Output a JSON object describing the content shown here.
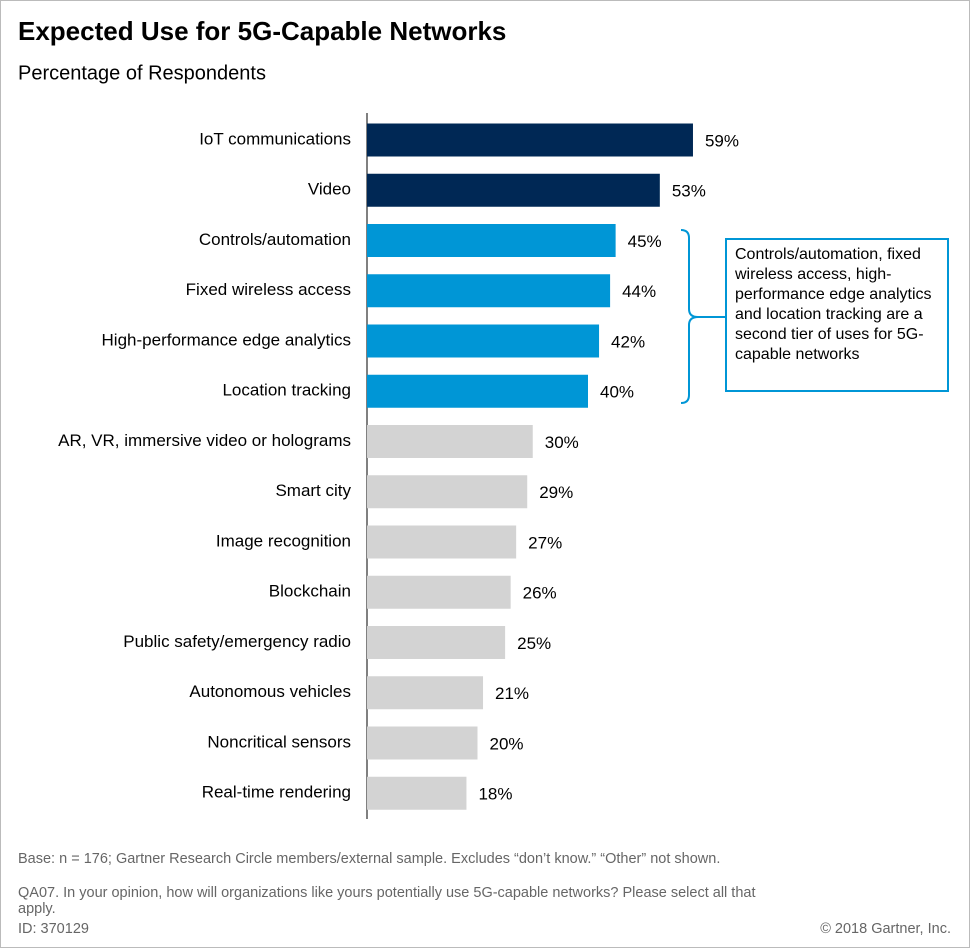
{
  "chart_data": {
    "type": "bar",
    "orientation": "horizontal",
    "title": "Expected Use for 5G-Capable Networks",
    "subtitle": "Percentage of Respondents",
    "categories": [
      "IoT communications",
      "Video",
      "Controls/automation",
      "Fixed wireless access",
      "High-performance edge analytics",
      "Location tracking",
      "AR, VR, immersive video or holograms",
      "Smart city",
      "Image recognition",
      "Blockchain",
      "Public safety/emergency radio",
      "Autonomous vehicles",
      "Noncritical sensors",
      "Real-time rendering"
    ],
    "values": [
      59,
      53,
      45,
      44,
      42,
      40,
      30,
      29,
      27,
      26,
      25,
      21,
      20,
      18
    ],
    "value_labels": [
      "59%",
      "53%",
      "45%",
      "44%",
      "42%",
      "40%",
      "30%",
      "29%",
      "27%",
      "26%",
      "25%",
      "21%",
      "20%",
      "18%"
    ],
    "colors": [
      "#002855",
      "#002855",
      "#0096d6",
      "#0096d6",
      "#0096d6",
      "#0096d6",
      "#d3d3d3",
      "#d3d3d3",
      "#d3d3d3",
      "#d3d3d3",
      "#d3d3d3",
      "#d3d3d3",
      "#d3d3d3",
      "#d3d3d3"
    ],
    "annotation": "Controls/automation, fixed wireless access, high-performance edge analytics and location tracking are a second tier of uses for 5G-capable networks",
    "notes": [
      "Base: n = 176; Gartner Research Circle members/external sample. Excludes “don’t know.” “Other” not shown.",
      "QA07. In your opinion, how will organizations like yours potentially use 5G-capable networks? Please select all that apply.",
      "ID: 370129"
    ],
    "copyright": "© 2018 Gartner, Inc."
  }
}
